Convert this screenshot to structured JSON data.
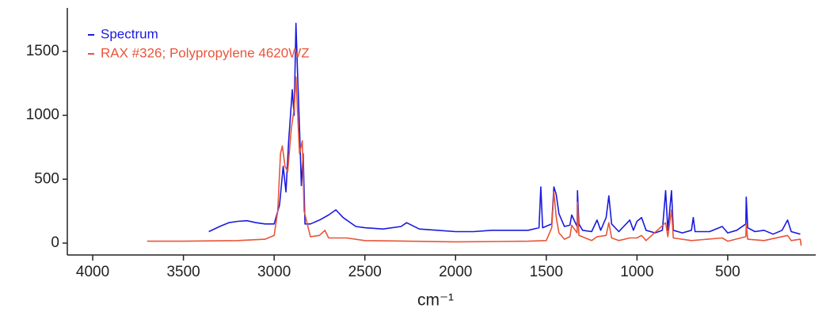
{
  "chart_data": {
    "type": "line",
    "x_label": "cm⁻¹",
    "xlim": [
      4140,
      15
    ],
    "xticks": [
      4000,
      3500,
      3000,
      2500,
      2000,
      1500,
      1000,
      500
    ],
    "ylim": [
      -93,
      1840
    ],
    "yticks": [
      0,
      500,
      1000,
      1500
    ],
    "grid": false,
    "legend": "upper left",
    "series": [
      {
        "name": "Spectrum",
        "color": "#1a1ae0",
        "x": [
          3360,
          3300,
          3250,
          3200,
          3150,
          3100,
          3050,
          3000,
          2970,
          2950,
          2935,
          2920,
          2900,
          2890,
          2880,
          2870,
          2860,
          2850,
          2840,
          2830,
          2800,
          2750,
          2700,
          2660,
          2620,
          2550,
          2500,
          2400,
          2300,
          2270,
          2200,
          2100,
          2000,
          1900,
          1800,
          1700,
          1600,
          1540,
          1530,
          1520,
          1470,
          1458,
          1445,
          1430,
          1400,
          1370,
          1360,
          1330,
          1328,
          1320,
          1300,
          1250,
          1220,
          1200,
          1170,
          1155,
          1140,
          1100,
          1040,
          1020,
          1000,
          975,
          950,
          900,
          860,
          842,
          830,
          810,
          800,
          750,
          700,
          690,
          680,
          600,
          530,
          500,
          450,
          400,
          398,
          390,
          350,
          300,
          250,
          200,
          170,
          150,
          100
        ],
        "values": [
          90,
          130,
          160,
          170,
          175,
          160,
          150,
          150,
          300,
          600,
          400,
          800,
          1200,
          1000,
          1720,
          1300,
          900,
          450,
          700,
          150,
          150,
          180,
          220,
          260,
          200,
          130,
          120,
          110,
          130,
          160,
          110,
          100,
          90,
          90,
          100,
          100,
          100,
          120,
          440,
          120,
          150,
          440,
          380,
          230,
          130,
          140,
          220,
          130,
          410,
          150,
          100,
          90,
          180,
          100,
          200,
          370,
          150,
          90,
          180,
          100,
          170,
          200,
          100,
          80,
          100,
          410,
          100,
          410,
          100,
          80,
          100,
          200,
          90,
          90,
          130,
          80,
          100,
          150,
          360,
          120,
          90,
          100,
          70,
          100,
          180,
          90,
          70
        ]
      },
      {
        "name": "RAX #326; Polypropylene 4620WZ",
        "color": "#e8553a",
        "x": [
          3700,
          3500,
          3200,
          3050,
          3000,
          2980,
          2965,
          2955,
          2940,
          2925,
          2905,
          2890,
          2880,
          2870,
          2860,
          2845,
          2835,
          2800,
          2750,
          2720,
          2700,
          2600,
          2500,
          2000,
          1600,
          1500,
          1470,
          1458,
          1445,
          1430,
          1400,
          1370,
          1360,
          1330,
          1328,
          1320,
          1250,
          1220,
          1170,
          1155,
          1140,
          1100,
          1040,
          1000,
          975,
          950,
          842,
          830,
          810,
          800,
          700,
          530,
          500,
          400,
          398,
          390,
          300,
          170,
          150,
          100,
          95
        ],
        "values": [
          15,
          15,
          20,
          30,
          60,
          250,
          700,
          760,
          600,
          560,
          900,
          1050,
          1300,
          1000,
          700,
          800,
          250,
          50,
          60,
          100,
          40,
          40,
          20,
          10,
          15,
          20,
          120,
          400,
          200,
          80,
          30,
          50,
          140,
          80,
          320,
          60,
          20,
          50,
          60,
          160,
          40,
          20,
          40,
          40,
          60,
          20,
          160,
          50,
          260,
          40,
          20,
          40,
          15,
          50,
          150,
          30,
          20,
          60,
          20,
          30,
          -20
        ]
      }
    ]
  }
}
